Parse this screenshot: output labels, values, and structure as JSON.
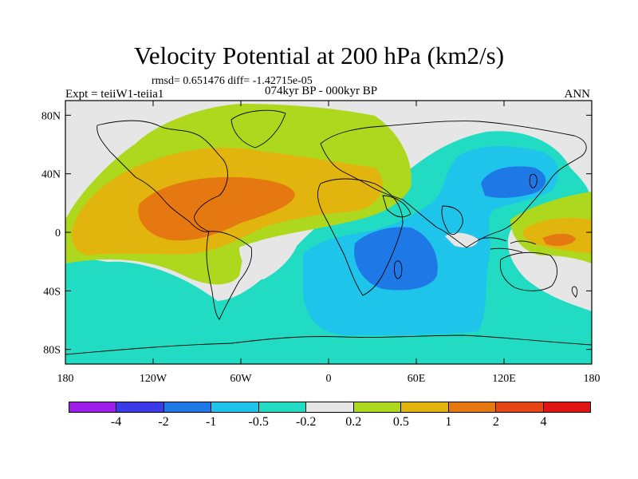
{
  "title": "Velocity Potential at 200 hPa (km2/s)",
  "stats_line": "rmsd= 0.651476 diff= -1.42715e-05",
  "subtitle": "074kyr BP - 000kyr BP",
  "experiment": "Expt = teiiW1-teiia1",
  "season": "ANN",
  "map": {
    "projection": "cylindrical equidistant",
    "lon_range": [
      -180,
      180
    ],
    "lat_range": [
      -90,
      90
    ],
    "y_ticks": [
      "80N",
      "40N",
      "0",
      "40S",
      "80S"
    ],
    "x_ticks": [
      "180",
      "120W",
      "60W",
      "0",
      "60E",
      "120E",
      "180"
    ]
  },
  "legend": {
    "levels": [
      "-4",
      "-2",
      "-1",
      "-0.5",
      "-0.2",
      "0.2",
      "0.5",
      "1",
      "2",
      "4"
    ],
    "colors": [
      "#9d1ee8",
      "#3a3ae8",
      "#1e78e6",
      "#1ec4ea",
      "#21dcc2",
      "#e6e6e6",
      "#aed81e",
      "#e2b40e",
      "#e67812",
      "#e64614",
      "#e01414"
    ]
  }
}
